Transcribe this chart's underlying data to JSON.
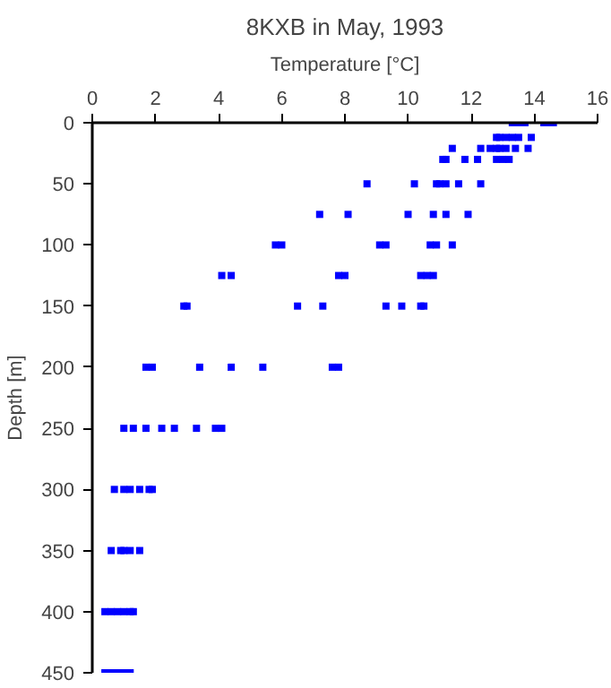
{
  "chart_data": {
    "type": "scatter",
    "title": "8KXB in May, 1993",
    "xlabel": "Temperature [°C]",
    "ylabel": "Depth [m]",
    "xlim": [
      0,
      16
    ],
    "xticks": [
      0,
      2,
      4,
      6,
      8,
      10,
      12,
      14,
      16
    ],
    "ylim": [
      450,
      0
    ],
    "yticks": [
      0,
      50,
      100,
      150,
      200,
      250,
      300,
      350,
      400,
      450
    ],
    "grid": false,
    "marker": "square",
    "series": [
      {
        "color": "#0000ff",
        "x": [
          13.3,
          13.4,
          13.6,
          13.7,
          14.3,
          14.4,
          14.6,
          12.8,
          12.9,
          13.1,
          13.3,
          13.5,
          13.9,
          11.4,
          12.3,
          12.6,
          12.8,
          12.9,
          13.1,
          13.4,
          13.8,
          11.1,
          11.2,
          11.8,
          12.2,
          12.8,
          13.0,
          13.2,
          8.7,
          10.2,
          10.9,
          11.0,
          11.2,
          11.6,
          12.3,
          7.2,
          8.1,
          10.0,
          10.8,
          11.2,
          11.9,
          5.8,
          6.0,
          9.1,
          9.3,
          10.7,
          10.9,
          11.4,
          4.1,
          4.4,
          7.8,
          8.0,
          10.4,
          10.6,
          10.8,
          2.9,
          3.0,
          6.5,
          7.3,
          9.3,
          9.8,
          10.4,
          10.5,
          1.7,
          1.9,
          3.4,
          4.4,
          5.4,
          7.6,
          7.8,
          1.0,
          1.3,
          1.7,
          2.2,
          2.6,
          3.3,
          3.9,
          4.1,
          0.7,
          1.0,
          1.2,
          1.5,
          1.8,
          1.9,
          0.6,
          0.9,
          1.0,
          1.2,
          1.5,
          0.4,
          0.6,
          0.8,
          1.0,
          1.2,
          1.3,
          0.4,
          0.6,
          0.8,
          1.0,
          1.2
        ],
        "values": [
          0,
          0,
          0,
          0,
          0,
          0,
          0,
          12,
          12,
          12,
          12,
          12,
          12,
          21,
          21,
          21,
          21,
          21,
          21,
          21,
          21,
          30,
          30,
          30,
          30,
          30,
          30,
          30,
          50,
          50,
          50,
          50,
          50,
          50,
          50,
          75,
          75,
          75,
          75,
          75,
          75,
          100,
          100,
          100,
          100,
          100,
          100,
          100,
          125,
          125,
          125,
          125,
          125,
          125,
          125,
          150,
          150,
          150,
          150,
          150,
          150,
          150,
          150,
          200,
          200,
          200,
          200,
          200,
          200,
          200,
          250,
          250,
          250,
          250,
          250,
          250,
          250,
          250,
          300,
          300,
          300,
          300,
          300,
          300,
          350,
          350,
          350,
          350,
          350,
          400,
          400,
          400,
          400,
          400,
          400,
          450,
          450,
          450,
          450,
          450
        ]
      }
    ]
  }
}
